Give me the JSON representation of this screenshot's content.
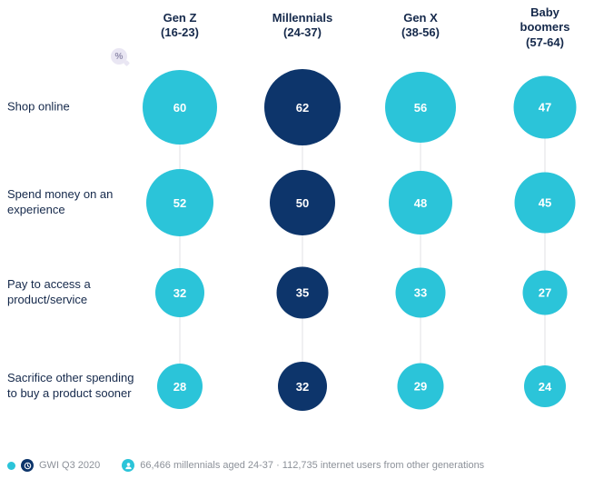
{
  "theme": {
    "cyan": "#2BC4D9",
    "navy": "#0D356B",
    "navy_text": "#15294B",
    "line": "#E2E2E6",
    "muted": "#8C9199",
    "badge_bg": "#E9E6F3",
    "badge_fg": "#918DAD"
  },
  "badges": {
    "percent": "%"
  },
  "chart_data": {
    "type": "bubble",
    "unit": "%",
    "bubble_colors": {
      "default": "#2BC4D9",
      "highlight": "#0D356B"
    },
    "columns": [
      {
        "name": "Gen Z",
        "range": "(16-23)",
        "highlight": false
      },
      {
        "name": "Millennials",
        "range": "(24-37)",
        "highlight": true
      },
      {
        "name": "Gen X",
        "range": "(38-56)",
        "highlight": false
      },
      {
        "name": "Baby boomers",
        "range": "(57-64)",
        "highlight": false
      }
    ],
    "rows": [
      {
        "label": "Shop online",
        "values": [
          60,
          62,
          56,
          47
        ]
      },
      {
        "label": "Spend money on an experience",
        "values": [
          52,
          50,
          48,
          45
        ]
      },
      {
        "label": "Pay to access a product/service",
        "values": [
          32,
          35,
          33,
          27
        ]
      },
      {
        "label": "Sacrifice other spending to buy a product sooner",
        "values": [
          28,
          32,
          29,
          24
        ]
      }
    ],
    "legend_position": "none",
    "grid": "vertical-connector-lines"
  },
  "footer": {
    "source": "GWI Q3 2020",
    "base": "66,466 millennials aged 24-37 · 112,735 internet users from other generations"
  }
}
